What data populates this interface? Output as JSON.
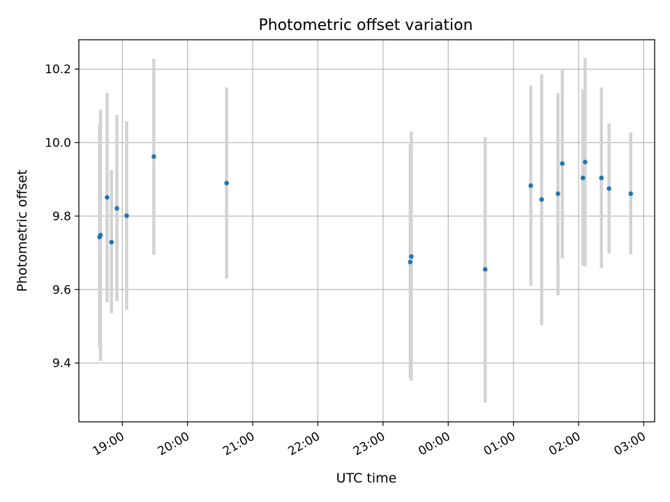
{
  "chart_data": {
    "type": "scatter",
    "title": "Photometric offset variation",
    "xlabel": "UTC time",
    "ylabel": "Photometric offset",
    "x_axis_type": "time",
    "x_range": [
      "18:20",
      "03:10"
    ],
    "xticks": [
      "19:00",
      "20:00",
      "21:00",
      "22:00",
      "23:00",
      "00:00",
      "01:00",
      "02:00",
      "03:00"
    ],
    "ylim": [
      9.24,
      10.28
    ],
    "yticks": [
      "9.4",
      "9.6",
      "9.8",
      "10.0",
      "10.2"
    ],
    "grid": true,
    "colors": {
      "marker": "#1f77b4",
      "errorbar": "#d3d3d3",
      "grid": "#b0b0b0",
      "axes": "#000000"
    },
    "points": [
      {
        "x": "18:39",
        "y": 9.743,
        "err_low": 9.44,
        "err_high": 10.05
      },
      {
        "x": "18:40",
        "y": 9.748,
        "err_low": 9.405,
        "err_high": 10.09
      },
      {
        "x": "18:46",
        "y": 9.851,
        "err_low": 9.565,
        "err_high": 10.135
      },
      {
        "x": "18:50",
        "y": 9.729,
        "err_low": 9.535,
        "err_high": 9.925
      },
      {
        "x": "18:55",
        "y": 9.821,
        "err_low": 9.568,
        "err_high": 10.075
      },
      {
        "x": "19:04",
        "y": 9.801,
        "err_low": 9.545,
        "err_high": 10.058
      },
      {
        "x": "19:29",
        "y": 9.962,
        "err_low": 9.695,
        "err_high": 10.228
      },
      {
        "x": "20:36",
        "y": 9.89,
        "err_low": 9.63,
        "err_high": 10.15
      },
      {
        "x": "23:25",
        "y": 9.675,
        "err_low": 9.36,
        "err_high": 9.995
      },
      {
        "x": "23:26",
        "y": 9.69,
        "err_low": 9.352,
        "err_high": 10.03
      },
      {
        "x": "00:34",
        "y": 9.655,
        "err_low": 9.292,
        "err_high": 10.015
      },
      {
        "x": "01:16",
        "y": 9.883,
        "err_low": 9.61,
        "err_high": 10.155
      },
      {
        "x": "01:26",
        "y": 9.845,
        "err_low": 9.503,
        "err_high": 10.186
      },
      {
        "x": "01:41",
        "y": 9.861,
        "err_low": 9.584,
        "err_high": 10.135
      },
      {
        "x": "01:45",
        "y": 9.943,
        "err_low": 9.685,
        "err_high": 10.2
      },
      {
        "x": "02:04",
        "y": 9.904,
        "err_low": 9.665,
        "err_high": 10.145
      },
      {
        "x": "02:06",
        "y": 9.947,
        "err_low": 9.663,
        "err_high": 10.23
      },
      {
        "x": "02:21",
        "y": 9.904,
        "err_low": 9.658,
        "err_high": 10.15
      },
      {
        "x": "02:28",
        "y": 9.875,
        "err_low": 9.698,
        "err_high": 10.052
      },
      {
        "x": "02:48",
        "y": 9.861,
        "err_low": 9.696,
        "err_high": 10.027
      }
    ]
  }
}
